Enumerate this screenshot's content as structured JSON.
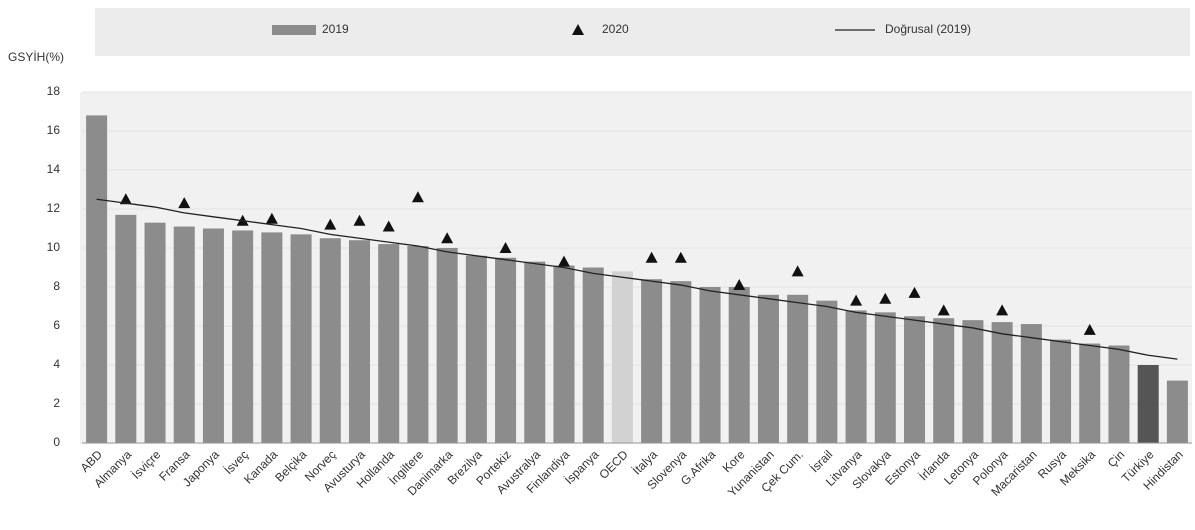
{
  "chart_data": {
    "type": "bar",
    "y_label": "GSYİH(%)",
    "categories": [
      "ABD",
      "Almanya",
      "İsviçre",
      "Fransa",
      "Japonya",
      "İsveç",
      "Kanada",
      "Belçika",
      "Norveç",
      "Avusturya",
      "Hollanda",
      "İngiltere",
      "Danimarka",
      "Brezilya",
      "Portekiz",
      "Avustralya",
      "Finlandiya",
      "İspanya",
      "OECD",
      "İtalya",
      "Slovenya",
      "G.Afrika",
      "Kore",
      "Yunanistan",
      "Çek Cum.",
      "İsrail",
      "Litvanya",
      "Slovakya",
      "Estonya",
      "İrlanda",
      "Letonya",
      "Polonya",
      "Macaristan",
      "Rusya",
      "Meksika",
      "Çin",
      "Türkiye",
      "Hindistan"
    ],
    "series": [
      {
        "name": "2019",
        "kind": "bar",
        "color": "#8c8c8c",
        "colors": [
          "#8c8c8c",
          "#8c8c8c",
          "#8c8c8c",
          "#8c8c8c",
          "#8c8c8c",
          "#8c8c8c",
          "#8c8c8c",
          "#8c8c8c",
          "#8c8c8c",
          "#8c8c8c",
          "#8c8c8c",
          "#8c8c8c",
          "#8c8c8c",
          "#8c8c8c",
          "#8c8c8c",
          "#8c8c8c",
          "#8c8c8c",
          "#8c8c8c",
          "#d2d2d2",
          "#8c8c8c",
          "#8c8c8c",
          "#8c8c8c",
          "#8c8c8c",
          "#8c8c8c",
          "#8c8c8c",
          "#8c8c8c",
          "#8c8c8c",
          "#8c8c8c",
          "#8c8c8c",
          "#8c8c8c",
          "#8c8c8c",
          "#8c8c8c",
          "#8c8c8c",
          "#8c8c8c",
          "#8c8c8c",
          "#8c8c8c",
          "#555555",
          "#8c8c8c"
        ],
        "values": [
          16.8,
          11.7,
          11.3,
          11.1,
          11.0,
          10.9,
          10.8,
          10.7,
          10.5,
          10.4,
          10.2,
          10.1,
          10.0,
          9.6,
          9.5,
          9.3,
          9.1,
          9.0,
          8.8,
          8.4,
          8.3,
          8.0,
          8.0,
          7.6,
          7.6,
          7.3,
          6.8,
          6.7,
          6.5,
          6.4,
          6.3,
          6.2,
          6.1,
          5.3,
          5.1,
          5.0,
          4.0,
          3.2
        ]
      },
      {
        "name": "2020",
        "kind": "triangle",
        "color": "#111111",
        "values": [
          null,
          12.5,
          null,
          12.3,
          null,
          11.4,
          11.5,
          null,
          11.2,
          11.4,
          11.1,
          12.6,
          10.5,
          null,
          10.0,
          null,
          9.3,
          null,
          null,
          9.5,
          9.5,
          null,
          8.1,
          null,
          8.8,
          null,
          7.3,
          7.4,
          7.7,
          6.8,
          null,
          6.8,
          null,
          null,
          5.8,
          null,
          null,
          null
        ]
      },
      {
        "name": "Doğrusal (2019)",
        "kind": "line",
        "color": "#222222",
        "values": [
          12.5,
          12.3,
          12.1,
          11.8,
          11.6,
          11.4,
          11.2,
          11.0,
          10.7,
          10.5,
          10.3,
          10.1,
          9.8,
          9.6,
          9.4,
          9.2,
          9.0,
          8.7,
          8.5,
          8.3,
          8.1,
          7.8,
          7.6,
          7.4,
          7.2,
          7.0,
          6.7,
          6.5,
          6.3,
          6.1,
          5.9,
          5.6,
          5.4,
          5.2,
          5.0,
          4.8,
          4.5,
          4.3
        ]
      }
    ],
    "ylim": [
      0,
      18
    ],
    "yticks": [
      0,
      2,
      4,
      6,
      8,
      10,
      12,
      14,
      16,
      18
    ],
    "grid": true,
    "legend": "top"
  }
}
